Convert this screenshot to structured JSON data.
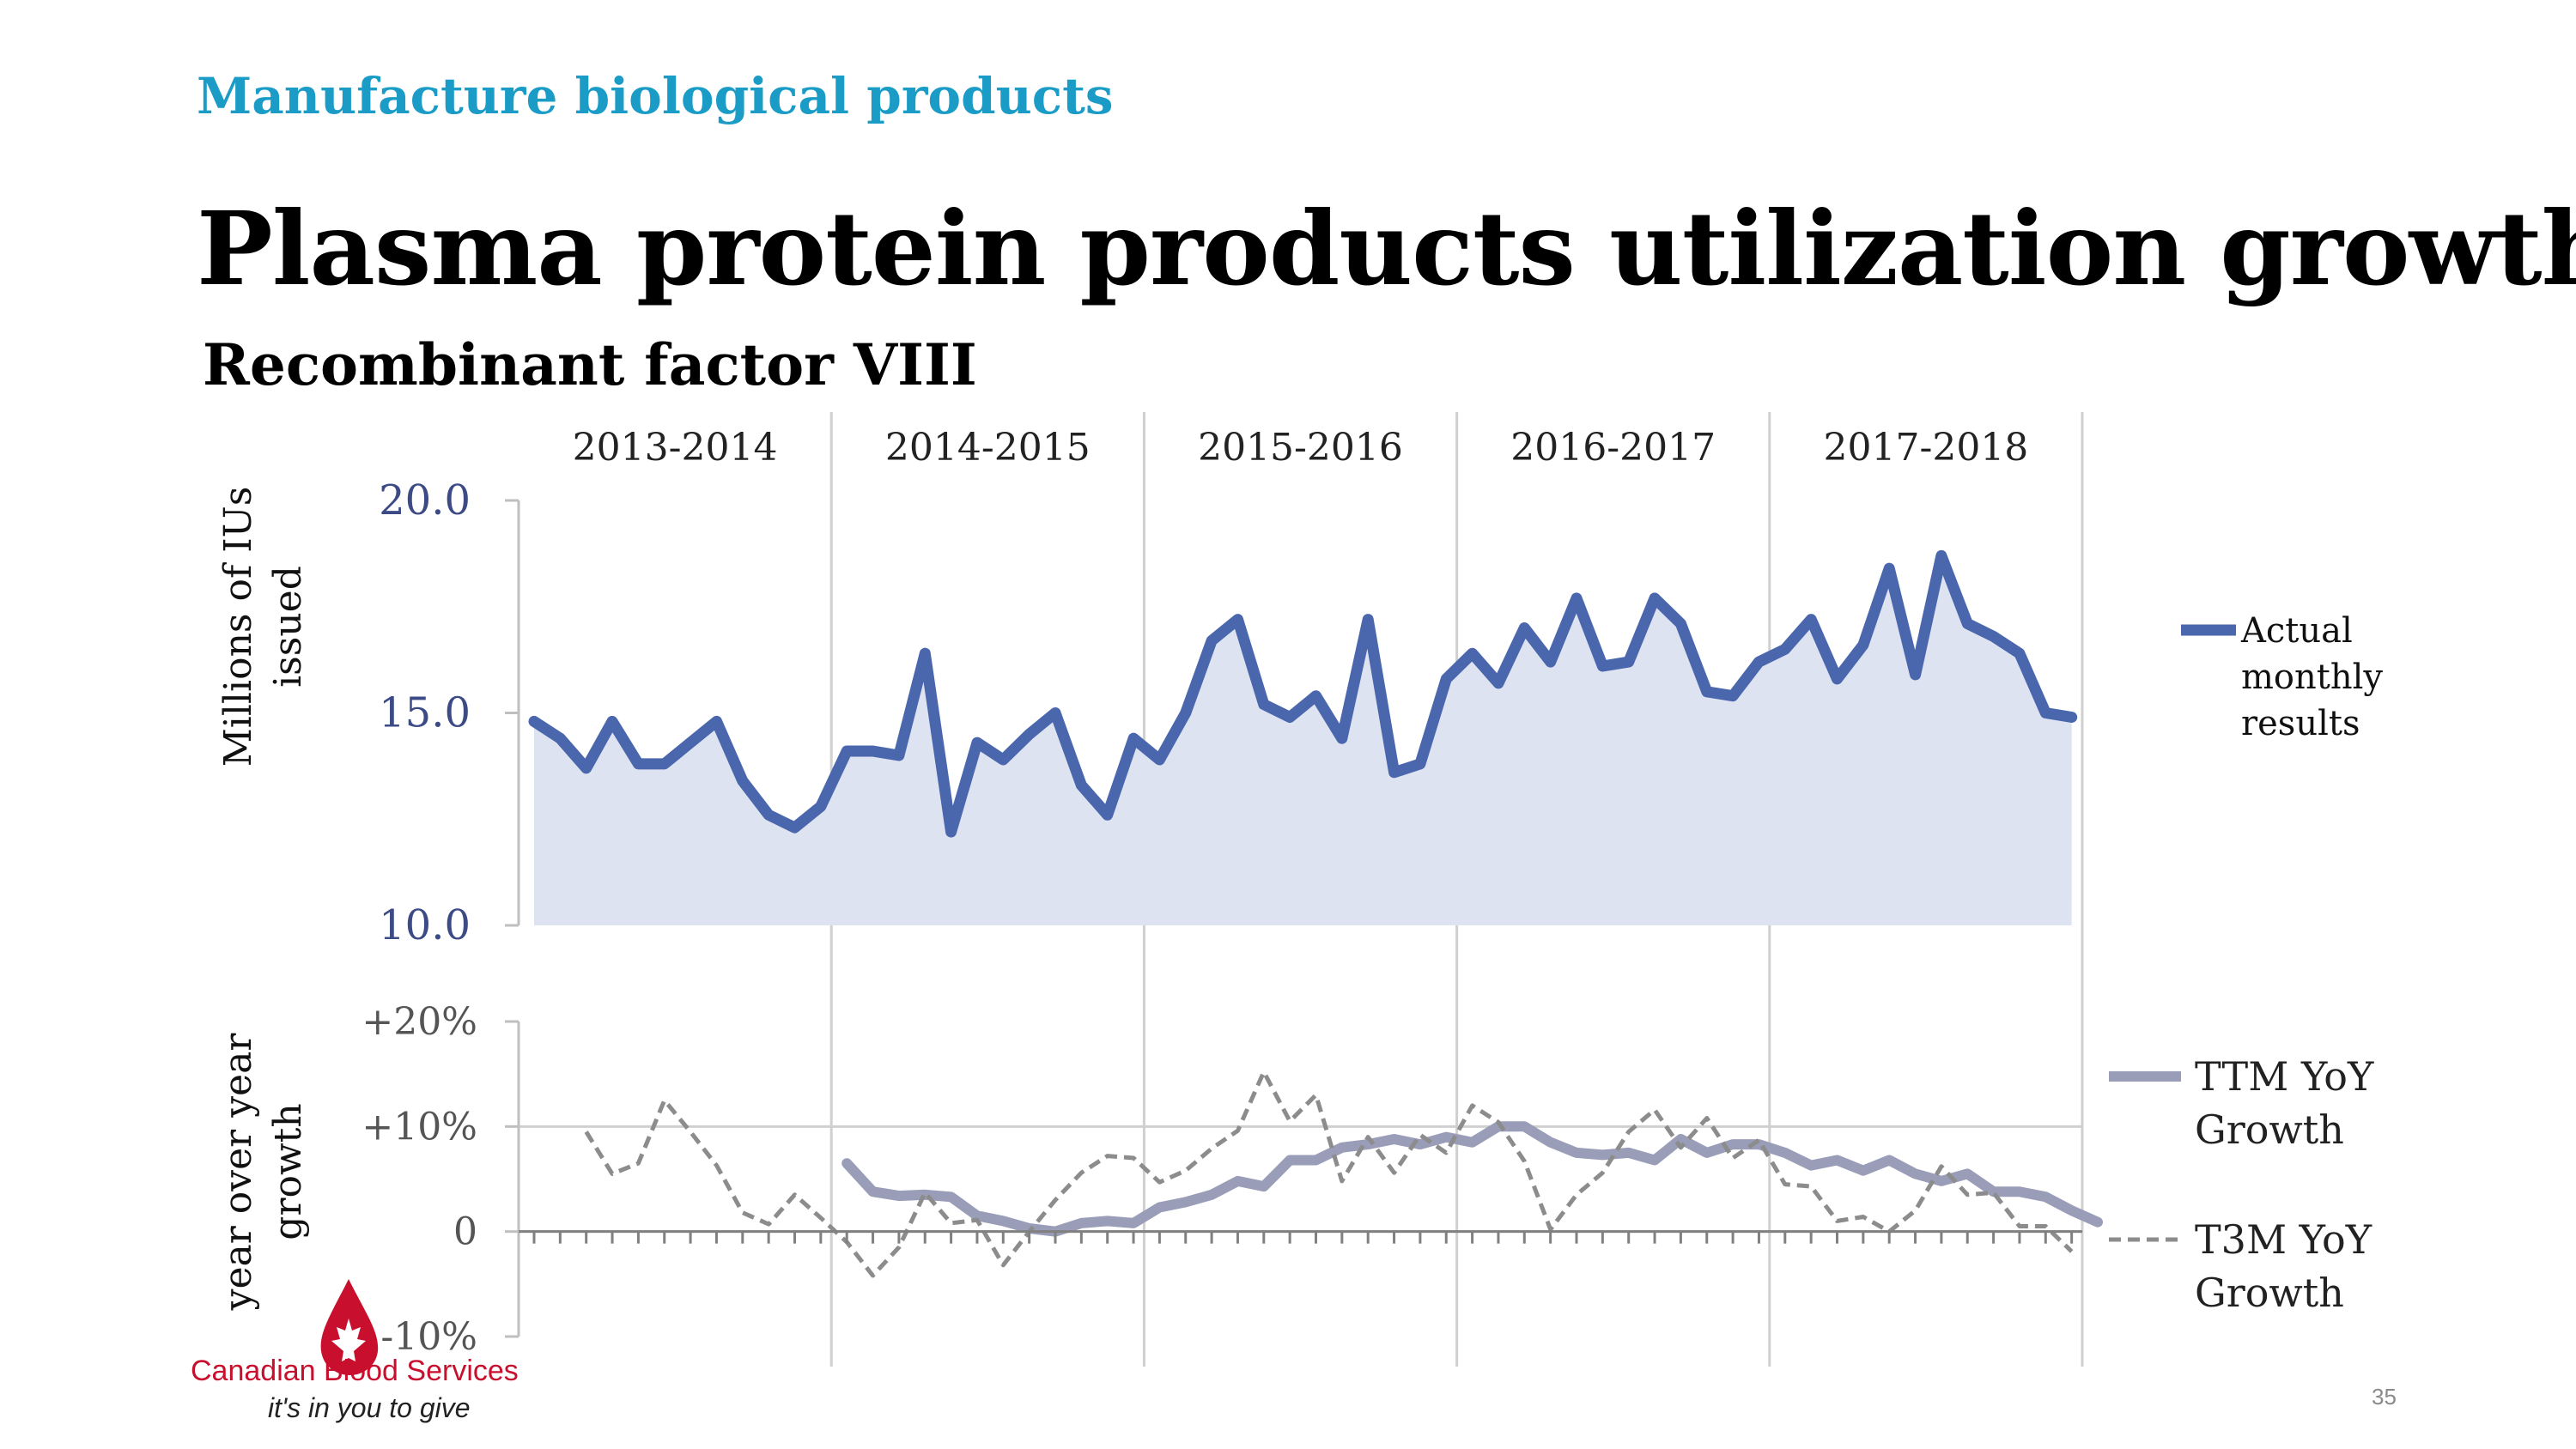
{
  "header": {
    "kicker": "Manufacture biological products",
    "title": "Plasma protein products utilization growth",
    "subtitle": "Recombinant factor VIII"
  },
  "logo": {
    "name": "Canadian Blood Services",
    "tagline": "it's in you to give",
    "icon": "blood-drop-maple-leaf-icon",
    "color": "#c8102e"
  },
  "page_number": "35",
  "colors": {
    "actual": "#4a66ad",
    "area_fill": "#dde3f1",
    "ttm": "#9a9db8",
    "t3m": "#8c8c8c",
    "grid": "#d0d0d0",
    "axis_text_top": "#3c4a86",
    "axis_text_bottom": "#555555"
  },
  "chart_data": [
    {
      "type": "area",
      "ylabel": "Millions of IUs issued",
      "ylim": [
        10,
        20
      ],
      "yticks": [
        "20.0",
        "15.0",
        "10.0"
      ],
      "periods": [
        "2013-2014",
        "2014-2015",
        "2015-2016",
        "2016-2017",
        "2017-2018"
      ],
      "months_per_period": 12,
      "legend_position": "right",
      "grid": true,
      "series": [
        {
          "name": "Actual monthly results",
          "values": [
            14.8,
            14.4,
            13.7,
            14.8,
            13.8,
            13.8,
            14.3,
            14.8,
            13.4,
            12.6,
            12.3,
            12.8,
            14.1,
            14.1,
            14.0,
            16.4,
            12.2,
            14.3,
            13.9,
            14.5,
            15.0,
            13.3,
            12.6,
            14.4,
            13.9,
            15.0,
            16.7,
            17.2,
            15.2,
            14.9,
            15.4,
            14.4,
            17.2,
            13.6,
            13.8,
            15.8,
            16.4,
            15.7,
            17.0,
            16.2,
            17.7,
            16.1,
            16.2,
            17.7,
            17.1,
            15.5,
            15.4,
            16.2,
            16.5,
            17.2,
            15.8,
            16.6,
            18.4,
            15.9,
            18.7,
            17.1,
            16.8,
            16.4,
            15.0,
            14.9
          ]
        }
      ]
    },
    {
      "type": "line",
      "ylabel": "year over year growth",
      "ylim": [
        -10,
        20
      ],
      "yticks": [
        "+20%",
        "+10%",
        "0",
        "-10%"
      ],
      "legend_position": "right",
      "grid": true,
      "series": [
        {
          "name": "TTM YoY Growth",
          "start_month_index": 12,
          "values": [
            6.5,
            3.8,
            3.4,
            3.5,
            3.3,
            1.5,
            1.0,
            0.3,
            0.0,
            0.8,
            1.0,
            0.8,
            2.3,
            2.8,
            3.5,
            4.8,
            4.3,
            6.8,
            6.8,
            8.0,
            8.3,
            8.8,
            8.3,
            9.0,
            8.5,
            10.0,
            10.0,
            8.5,
            7.5,
            7.3,
            7.5,
            6.8,
            8.8,
            7.5,
            8.3,
            8.3,
            7.5,
            6.3,
            6.8,
            5.8,
            6.8,
            5.5,
            4.8,
            5.5,
            3.8,
            3.8,
            3.3,
            2.0,
            0.9
          ]
        },
        {
          "name": "T3M YoY Growth",
          "start_month_index": 2,
          "values": [
            9.5,
            5.5,
            6.5,
            12.5,
            9.5,
            6.3,
            1.8,
            0.7,
            3.5,
            1.3,
            -1.0,
            -4.2,
            -1.5,
            3.7,
            0.8,
            1.1,
            -3.2,
            0.0,
            3.0,
            5.6,
            7.2,
            7.0,
            4.7,
            5.8,
            7.9,
            9.6,
            15.2,
            10.5,
            13.0,
            4.8,
            9.0,
            5.6,
            9.2,
            7.5,
            12.0,
            10.4,
            6.7,
            0.2,
            3.5,
            5.6,
            9.5,
            11.6,
            8.0,
            10.8,
            7.0,
            8.7,
            4.5,
            4.3,
            1.0,
            1.4,
            0.0,
            2.0,
            6.2,
            3.5,
            3.7,
            0.5,
            0.5,
            -1.9
          ]
        }
      ]
    }
  ]
}
